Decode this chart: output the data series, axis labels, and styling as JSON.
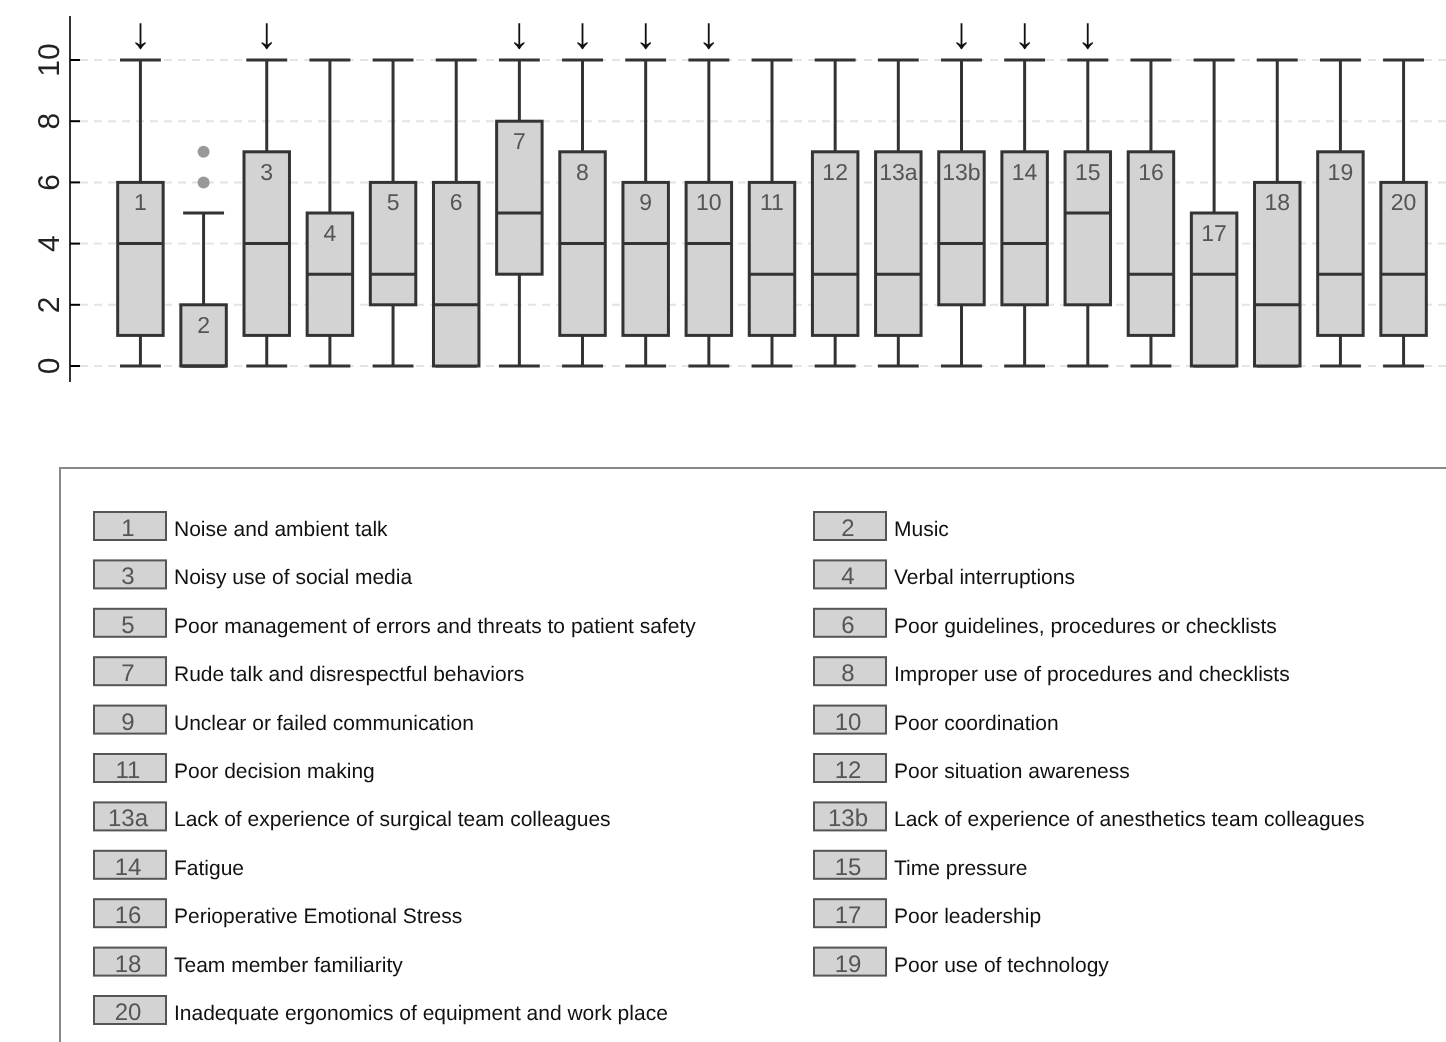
{
  "chart_data": {
    "type": "box",
    "categories": [
      "1",
      "2",
      "3",
      "4",
      "5",
      "6",
      "7",
      "8",
      "9",
      "10",
      "11",
      "12",
      "13a",
      "13b",
      "14",
      "15",
      "16",
      "17",
      "18",
      "19",
      "20"
    ],
    "boxes": [
      {
        "low": 0,
        "q1": 1,
        "median": 4,
        "q3": 6,
        "high": 10
      },
      {
        "low": 0,
        "q1": 0,
        "median": 0,
        "q3": 2,
        "high": 5,
        "outliers": [
          6,
          7
        ]
      },
      {
        "low": 0,
        "q1": 1,
        "median": 4,
        "q3": 7,
        "high": 10
      },
      {
        "low": 0,
        "q1": 1,
        "median": 3,
        "q3": 5,
        "high": 10
      },
      {
        "low": 0,
        "q1": 2,
        "median": 3,
        "q3": 6,
        "high": 10
      },
      {
        "low": 0,
        "q1": 0,
        "median": 2,
        "q3": 6,
        "high": 10
      },
      {
        "low": 0,
        "q1": 3,
        "median": 5,
        "q3": 8,
        "high": 10
      },
      {
        "low": 0,
        "q1": 1,
        "median": 4,
        "q3": 7,
        "high": 10
      },
      {
        "low": 0,
        "q1": 1,
        "median": 4,
        "q3": 6,
        "high": 10
      },
      {
        "low": 0,
        "q1": 1,
        "median": 4,
        "q3": 6,
        "high": 10
      },
      {
        "low": 0,
        "q1": 1,
        "median": 3,
        "q3": 6,
        "high": 10
      },
      {
        "low": 0,
        "q1": 1,
        "median": 3,
        "q3": 7,
        "high": 10
      },
      {
        "low": 0,
        "q1": 1,
        "median": 3,
        "q3": 7,
        "high": 10
      },
      {
        "low": 0,
        "q1": 2,
        "median": 4,
        "q3": 7,
        "high": 10
      },
      {
        "low": 0,
        "q1": 2,
        "median": 4,
        "q3": 7,
        "high": 10
      },
      {
        "low": 0,
        "q1": 2,
        "median": 5,
        "q3": 7,
        "high": 10
      },
      {
        "low": 0,
        "q1": 1,
        "median": 3,
        "q3": 7,
        "high": 10
      },
      {
        "low": 0,
        "q1": 0,
        "median": 3,
        "q3": 5,
        "high": 10
      },
      {
        "low": 0,
        "q1": 0,
        "median": 2,
        "q3": 6,
        "high": 10
      },
      {
        "low": 0,
        "q1": 1,
        "median": 3,
        "q3": 7,
        "high": 10
      },
      {
        "low": 0,
        "q1": 1,
        "median": 3,
        "q3": 6,
        "high": 10
      }
    ],
    "color": "#d3d3d3",
    "ylim": [
      0,
      10
    ],
    "yticks": [
      0,
      2,
      4,
      6,
      8,
      10
    ],
    "grid": "y",
    "tick_labels": "y",
    "annotations": [
      {
        "text": "↓",
        "x": "1",
        "y": 10
      },
      {
        "text": "↓",
        "x": "3",
        "y": 10
      },
      {
        "text": "↓",
        "x": "7",
        "y": 10
      },
      {
        "text": "↓",
        "x": "8",
        "y": 10
      },
      {
        "text": "↓",
        "x": "9",
        "y": 10
      },
      {
        "text": "↓",
        "x": "10",
        "y": 10
      },
      {
        "text": "↓",
        "x": "13b",
        "y": 10
      },
      {
        "text": "↓",
        "x": "14",
        "y": 10
      },
      {
        "text": "↓",
        "x": "15",
        "y": 10
      },
      "Noise and ambient talk",
      "Music",
      "Noisy use of social media",
      "Verbal interruptions",
      "Poor management  of errors and threats to patient safety",
      "Poor guidelines, procedures or checklists",
      "Rude talk and disrespectful behaviors",
      "Improper use of procedures and checklists",
      "Unclear or failed communication",
      "Poor coordination",
      "Poor decision making",
      "Poor situation awareness",
      "Lack of experience of surgical team colleagues",
      "Lack of experience of anesthetics team colleagues",
      "Fatigue",
      "Time pressure",
      "Perioperative Emotional Stress",
      "Poor leadership",
      "Team member familiarity",
      "Poor use of technology",
      "Inadequate ergonomics of equipment and work place"
    ]
  }
}
